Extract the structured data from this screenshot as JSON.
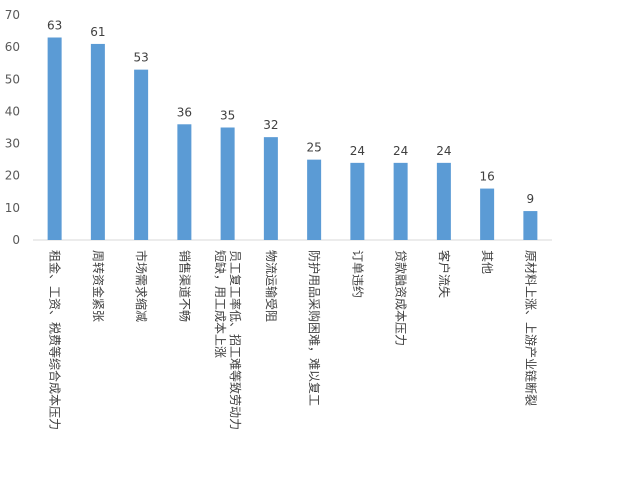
{
  "chart_data": {
    "type": "bar",
    "categories": [
      "租金、工资、税费等综合成本压力",
      "周转资金紧张",
      "市场需求缩减",
      "销售渠道不畅",
      "员工复工率低、招工难等致劳动力短缺，用工成本上涨",
      "物流运输受阻",
      "防护用品采购困难，难以复工",
      "订单违约",
      "贷款融资成本压力",
      "客户流失",
      "其他",
      "原材料上涨、上游产业链断裂"
    ],
    "category_lines": [
      [
        "租金、工资、税费等综合成本压力"
      ],
      [
        "周转资金紧张"
      ],
      [
        "市场需求缩减"
      ],
      [
        "销售渠道不畅"
      ],
      [
        "员工复工率低、招工难等致劳动力",
        "短缺，用工成本上涨"
      ],
      [
        "物流运输受阻"
      ],
      [
        "防护用品采购困难，难以复工"
      ],
      [
        "订单违约"
      ],
      [
        "贷款融资成本压力"
      ],
      [
        "客户流失"
      ],
      [
        "其他"
      ],
      [
        "原材料上涨、上游产业链断裂"
      ]
    ],
    "values": [
      63,
      61,
      53,
      36,
      35,
      32,
      25,
      24,
      24,
      24,
      16,
      9
    ],
    "yticks": [
      "0",
      "10",
      "20",
      "30",
      "40",
      "50",
      "60",
      "70"
    ],
    "ylim": [
      0,
      70
    ],
    "grid": false,
    "bar_color": "#5b9bd5",
    "title": "",
    "xlabel": "",
    "ylabel": ""
  }
}
